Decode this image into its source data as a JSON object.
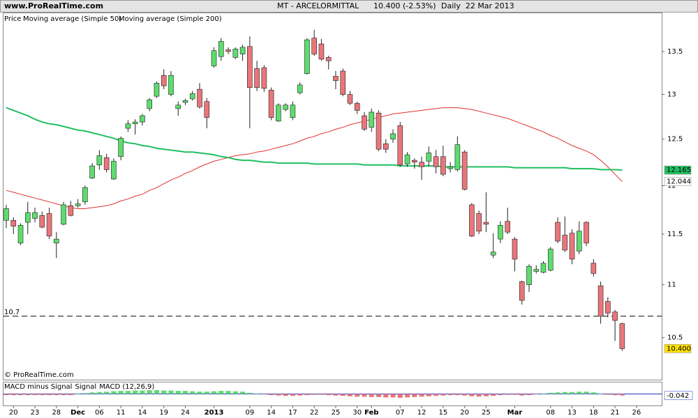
{
  "header": {
    "site": "www.ProRealTime.com",
    "instrument": "MT - ARCELORMITTAL",
    "quote": "10.400 (-2.53%)",
    "period": "Daily  22 Mar 2013"
  },
  "chart_data": {
    "type": "candlestick",
    "log": true,
    "ylim": [
      10.12,
      13.97
    ],
    "yticks": [
      10.5,
      11,
      11.5,
      12,
      12.5,
      13,
      13.5
    ],
    "legend_prefix": "Price",
    "watermark": "© ProRealTime.com",
    "up_color": "#5ddc6e",
    "down_color": "#e8767a",
    "hline": 10.7,
    "close_label": {
      "value": 10.4,
      "label": "10.400"
    },
    "categories": [
      null,
      "20",
      null,
      null,
      "23",
      null,
      null,
      "28",
      null,
      null,
      "Dec",
      null,
      null,
      "06",
      null,
      null,
      "11",
      null,
      null,
      "14",
      null,
      null,
      "19",
      null,
      null,
      "24",
      null,
      null,
      null,
      "2013",
      null,
      null,
      null,
      null,
      "09",
      null,
      null,
      "14",
      null,
      null,
      "17",
      null,
      null,
      "22",
      null,
      null,
      "25",
      null,
      null,
      "30",
      null,
      "Feb",
      null,
      null,
      null,
      "07",
      null,
      null,
      "12",
      null,
      null,
      "15",
      null,
      null,
      "20",
      null,
      null,
      "25",
      null,
      null,
      null,
      "Mar",
      null,
      null,
      null,
      null,
      "08",
      null,
      null,
      "13",
      null,
      null,
      "18",
      null,
      null,
      "21",
      null,
      null,
      "26"
    ],
    "open": [
      11.64,
      11.64,
      11.41,
      11.62,
      11.66,
      11.69,
      11.71,
      11.41,
      11.6,
      11.79,
      11.79,
      11.83,
      12.08,
      12.22,
      12.3,
      12.07,
      12.31,
      12.62,
      12.67,
      12.69,
      12.84,
      12.98,
      13.22,
      13.0,
      12.84,
      12.91,
      12.95,
      13.06,
      12.92,
      13.33,
      13.44,
      13.52,
      13.43,
      13.47,
      13.56,
      13.3,
      13.31,
      13.05,
      12.7,
      12.83,
      12.74,
      13.02,
      13.24,
      13.66,
      13.59,
      13.43,
      13.21,
      13.27,
      13.0,
      12.9,
      12.76,
      12.63,
      12.79,
      12.45,
      12.5,
      12.65,
      12.23,
      12.27,
      12.25,
      12.26,
      12.31,
      12.31,
      12.18,
      12.17,
      12.36,
      11.8,
      11.71,
      11.62,
      11.29,
      11.45,
      11.63,
      11.45,
      11.03,
      11.0,
      11.13,
      11.12,
      11.14,
      11.62,
      11.49,
      11.51,
      11.33,
      11.62,
      11.21,
      10.99,
      10.84,
      10.74,
      10.63,
      null,
      null
    ],
    "high": [
      11.8,
      11.67,
      11.61,
      11.83,
      11.77,
      11.73,
      11.77,
      11.52,
      11.83,
      11.84,
      11.86,
      12.0,
      12.24,
      12.38,
      12.34,
      12.29,
      12.53,
      12.71,
      12.72,
      12.78,
      12.96,
      13.15,
      13.29,
      13.27,
      12.92,
      12.95,
      13.04,
      13.13,
      12.96,
      13.55,
      13.66,
      13.55,
      13.55,
      13.58,
      13.68,
      13.39,
      13.34,
      13.08,
      12.9,
      12.9,
      12.92,
      13.14,
      13.66,
      13.76,
      13.65,
      13.45,
      13.27,
      13.3,
      13.04,
      12.92,
      12.8,
      12.84,
      12.82,
      12.5,
      12.61,
      12.69,
      12.36,
      12.29,
      12.31,
      12.42,
      12.38,
      12.43,
      12.25,
      12.53,
      12.38,
      11.82,
      11.74,
      11.93,
      11.51,
      11.63,
      11.77,
      11.47,
      11.04,
      11.2,
      11.19,
      11.23,
      11.37,
      11.67,
      11.68,
      11.55,
      11.63,
      11.63,
      11.25,
      11.03,
      10.88,
      10.76,
      10.64,
      null,
      null
    ],
    "low": [
      11.56,
      11.5,
      11.39,
      11.5,
      11.62,
      11.56,
      11.45,
      11.26,
      11.59,
      11.68,
      11.77,
      11.8,
      12.07,
      12.17,
      12.14,
      12.06,
      12.27,
      12.58,
      12.55,
      12.65,
      12.81,
      12.96,
      13.06,
      12.98,
      12.76,
      12.88,
      12.93,
      12.84,
      12.62,
      13.31,
      13.39,
      13.47,
      13.41,
      13.39,
      12.62,
      13.04,
      13.03,
      12.71,
      12.69,
      12.81,
      12.71,
      13.0,
      13.23,
      13.45,
      13.39,
      13.29,
      13.06,
      12.98,
      12.88,
      12.78,
      12.59,
      12.58,
      12.37,
      12.35,
      12.46,
      12.2,
      12.2,
      12.18,
      12.06,
      12.2,
      12.13,
      12.1,
      12.14,
      12.15,
      11.95,
      11.47,
      11.5,
      11.52,
      11.26,
      11.41,
      11.5,
      11.13,
      10.81,
      10.93,
      11.11,
      11.11,
      11.13,
      11.41,
      11.32,
      11.2,
      11.3,
      11.38,
      11.08,
      10.63,
      10.69,
      10.47,
      10.38,
      null,
      null
    ],
    "close": [
      11.76,
      11.58,
      11.59,
      11.72,
      11.72,
      11.57,
      11.48,
      11.45,
      11.8,
      11.69,
      11.81,
      11.98,
      12.21,
      12.32,
      12.17,
      12.26,
      12.51,
      12.67,
      12.69,
      12.76,
      12.94,
      13.13,
      13.1,
      13.22,
      12.88,
      12.93,
      13.01,
      12.86,
      12.74,
      13.51,
      13.62,
      13.5,
      13.53,
      13.55,
      13.08,
      13.08,
      13.07,
      12.74,
      12.88,
      12.88,
      12.88,
      13.11,
      13.64,
      13.47,
      13.41,
      13.39,
      13.16,
      13.0,
      12.9,
      12.82,
      12.61,
      12.8,
      12.39,
      12.39,
      12.56,
      12.22,
      12.33,
      12.25,
      12.2,
      12.35,
      12.2,
      12.12,
      12.2,
      12.44,
      11.96,
      11.48,
      11.53,
      11.6,
      11.32,
      11.59,
      11.52,
      11.25,
      10.85,
      11.18,
      11.15,
      11.21,
      11.35,
      11.43,
      11.34,
      11.25,
      11.53,
      11.41,
      11.11,
      10.7,
      10.73,
      10.66,
      10.4,
      null,
      null
    ],
    "series": [
      {
        "name": "Moving average (Simple 50)",
        "color": "#e03030",
        "values": [
          11.95,
          11.93,
          11.91,
          11.89,
          11.87,
          11.85,
          11.83,
          11.81,
          11.79,
          11.77,
          11.76,
          11.76,
          11.77,
          11.78,
          11.79,
          11.81,
          11.84,
          11.86,
          11.89,
          11.91,
          11.95,
          11.98,
          12.02,
          12.06,
          12.09,
          12.13,
          12.16,
          12.2,
          12.23,
          12.26,
          12.28,
          12.3,
          12.32,
          12.33,
          12.34,
          12.36,
          12.37,
          12.39,
          12.41,
          12.43,
          12.45,
          12.48,
          12.51,
          12.53,
          12.56,
          12.58,
          12.61,
          12.63,
          12.66,
          12.68,
          12.7,
          12.72,
          12.74,
          12.76,
          12.78,
          12.79,
          12.8,
          12.81,
          12.82,
          12.83,
          12.84,
          12.85,
          12.85,
          12.85,
          12.84,
          12.83,
          12.81,
          12.79,
          12.77,
          12.75,
          12.73,
          12.7,
          12.67,
          12.64,
          12.61,
          12.58,
          12.54,
          12.51,
          12.47,
          12.43,
          12.4,
          12.37,
          12.33,
          12.27,
          12.2,
          12.12,
          12.044,
          null,
          null
        ]
      },
      {
        "name": "Moving average (Simple 200)",
        "color": "#1fbf5f",
        "values": [
          12.85,
          12.82,
          12.79,
          12.76,
          12.72,
          12.69,
          12.67,
          12.66,
          12.64,
          12.62,
          12.6,
          12.59,
          12.57,
          12.55,
          12.53,
          12.51,
          12.48,
          12.46,
          12.45,
          12.43,
          12.42,
          12.4,
          12.39,
          12.38,
          12.37,
          12.36,
          12.36,
          12.35,
          12.34,
          12.33,
          12.31,
          12.3,
          12.28,
          12.27,
          12.27,
          12.26,
          12.25,
          12.25,
          12.24,
          12.24,
          12.24,
          12.24,
          12.24,
          12.23,
          12.23,
          12.23,
          12.23,
          12.23,
          12.23,
          12.23,
          12.22,
          12.22,
          12.22,
          12.22,
          12.22,
          12.21,
          12.21,
          12.21,
          12.21,
          12.21,
          12.21,
          12.2,
          12.2,
          12.2,
          12.2,
          12.2,
          12.2,
          12.2,
          12.2,
          12.2,
          12.2,
          12.19,
          12.19,
          12.19,
          12.19,
          12.19,
          12.19,
          12.19,
          12.19,
          12.18,
          12.18,
          12.18,
          12.18,
          12.17,
          12.17,
          12.17,
          12.165,
          null,
          null
        ]
      }
    ],
    "macd": {
      "legend": [
        {
          "text": "MACD minus Signal",
          "color": "#e03030"
        },
        {
          "text": "Signal",
          "color": "#c040c0"
        },
        {
          "text": "MACD (12,26,9)",
          "color": "#2030c0"
        }
      ],
      "ylim": [
        -0.3,
        0.3
      ],
      "last_value": -0.042,
      "hist": [
        -0.03,
        -0.03,
        -0.03,
        -0.03,
        -0.03,
        -0.03,
        -0.03,
        -0.03,
        -0.03,
        -0.03,
        0.0,
        0.02,
        0.04,
        0.05,
        0.06,
        0.07,
        0.08,
        0.08,
        0.09,
        0.09,
        0.1,
        0.1,
        0.09,
        0.09,
        0.08,
        0.08,
        0.07,
        0.06,
        0.06,
        0.07,
        0.08,
        0.08,
        0.07,
        0.06,
        0.03,
        0.01,
        -0.01,
        -0.03,
        -0.04,
        -0.05,
        -0.05,
        -0.04,
        -0.03,
        -0.02,
        -0.02,
        -0.03,
        -0.04,
        -0.05,
        -0.06,
        -0.07,
        -0.07,
        -0.08,
        -0.08,
        -0.09,
        -0.09,
        -0.1,
        -0.09,
        -0.08,
        -0.07,
        -0.06,
        -0.05,
        -0.04,
        -0.03,
        -0.03,
        -0.04,
        -0.06,
        -0.07,
        -0.06,
        -0.05,
        -0.03,
        -0.02,
        -0.02,
        -0.04,
        -0.03,
        -0.01,
        0.01,
        0.03,
        0.04,
        0.05,
        0.05,
        0.06,
        0.06,
        0.04,
        0.01,
        -0.02,
        -0.03,
        -0.04,
        null,
        null
      ]
    }
  }
}
